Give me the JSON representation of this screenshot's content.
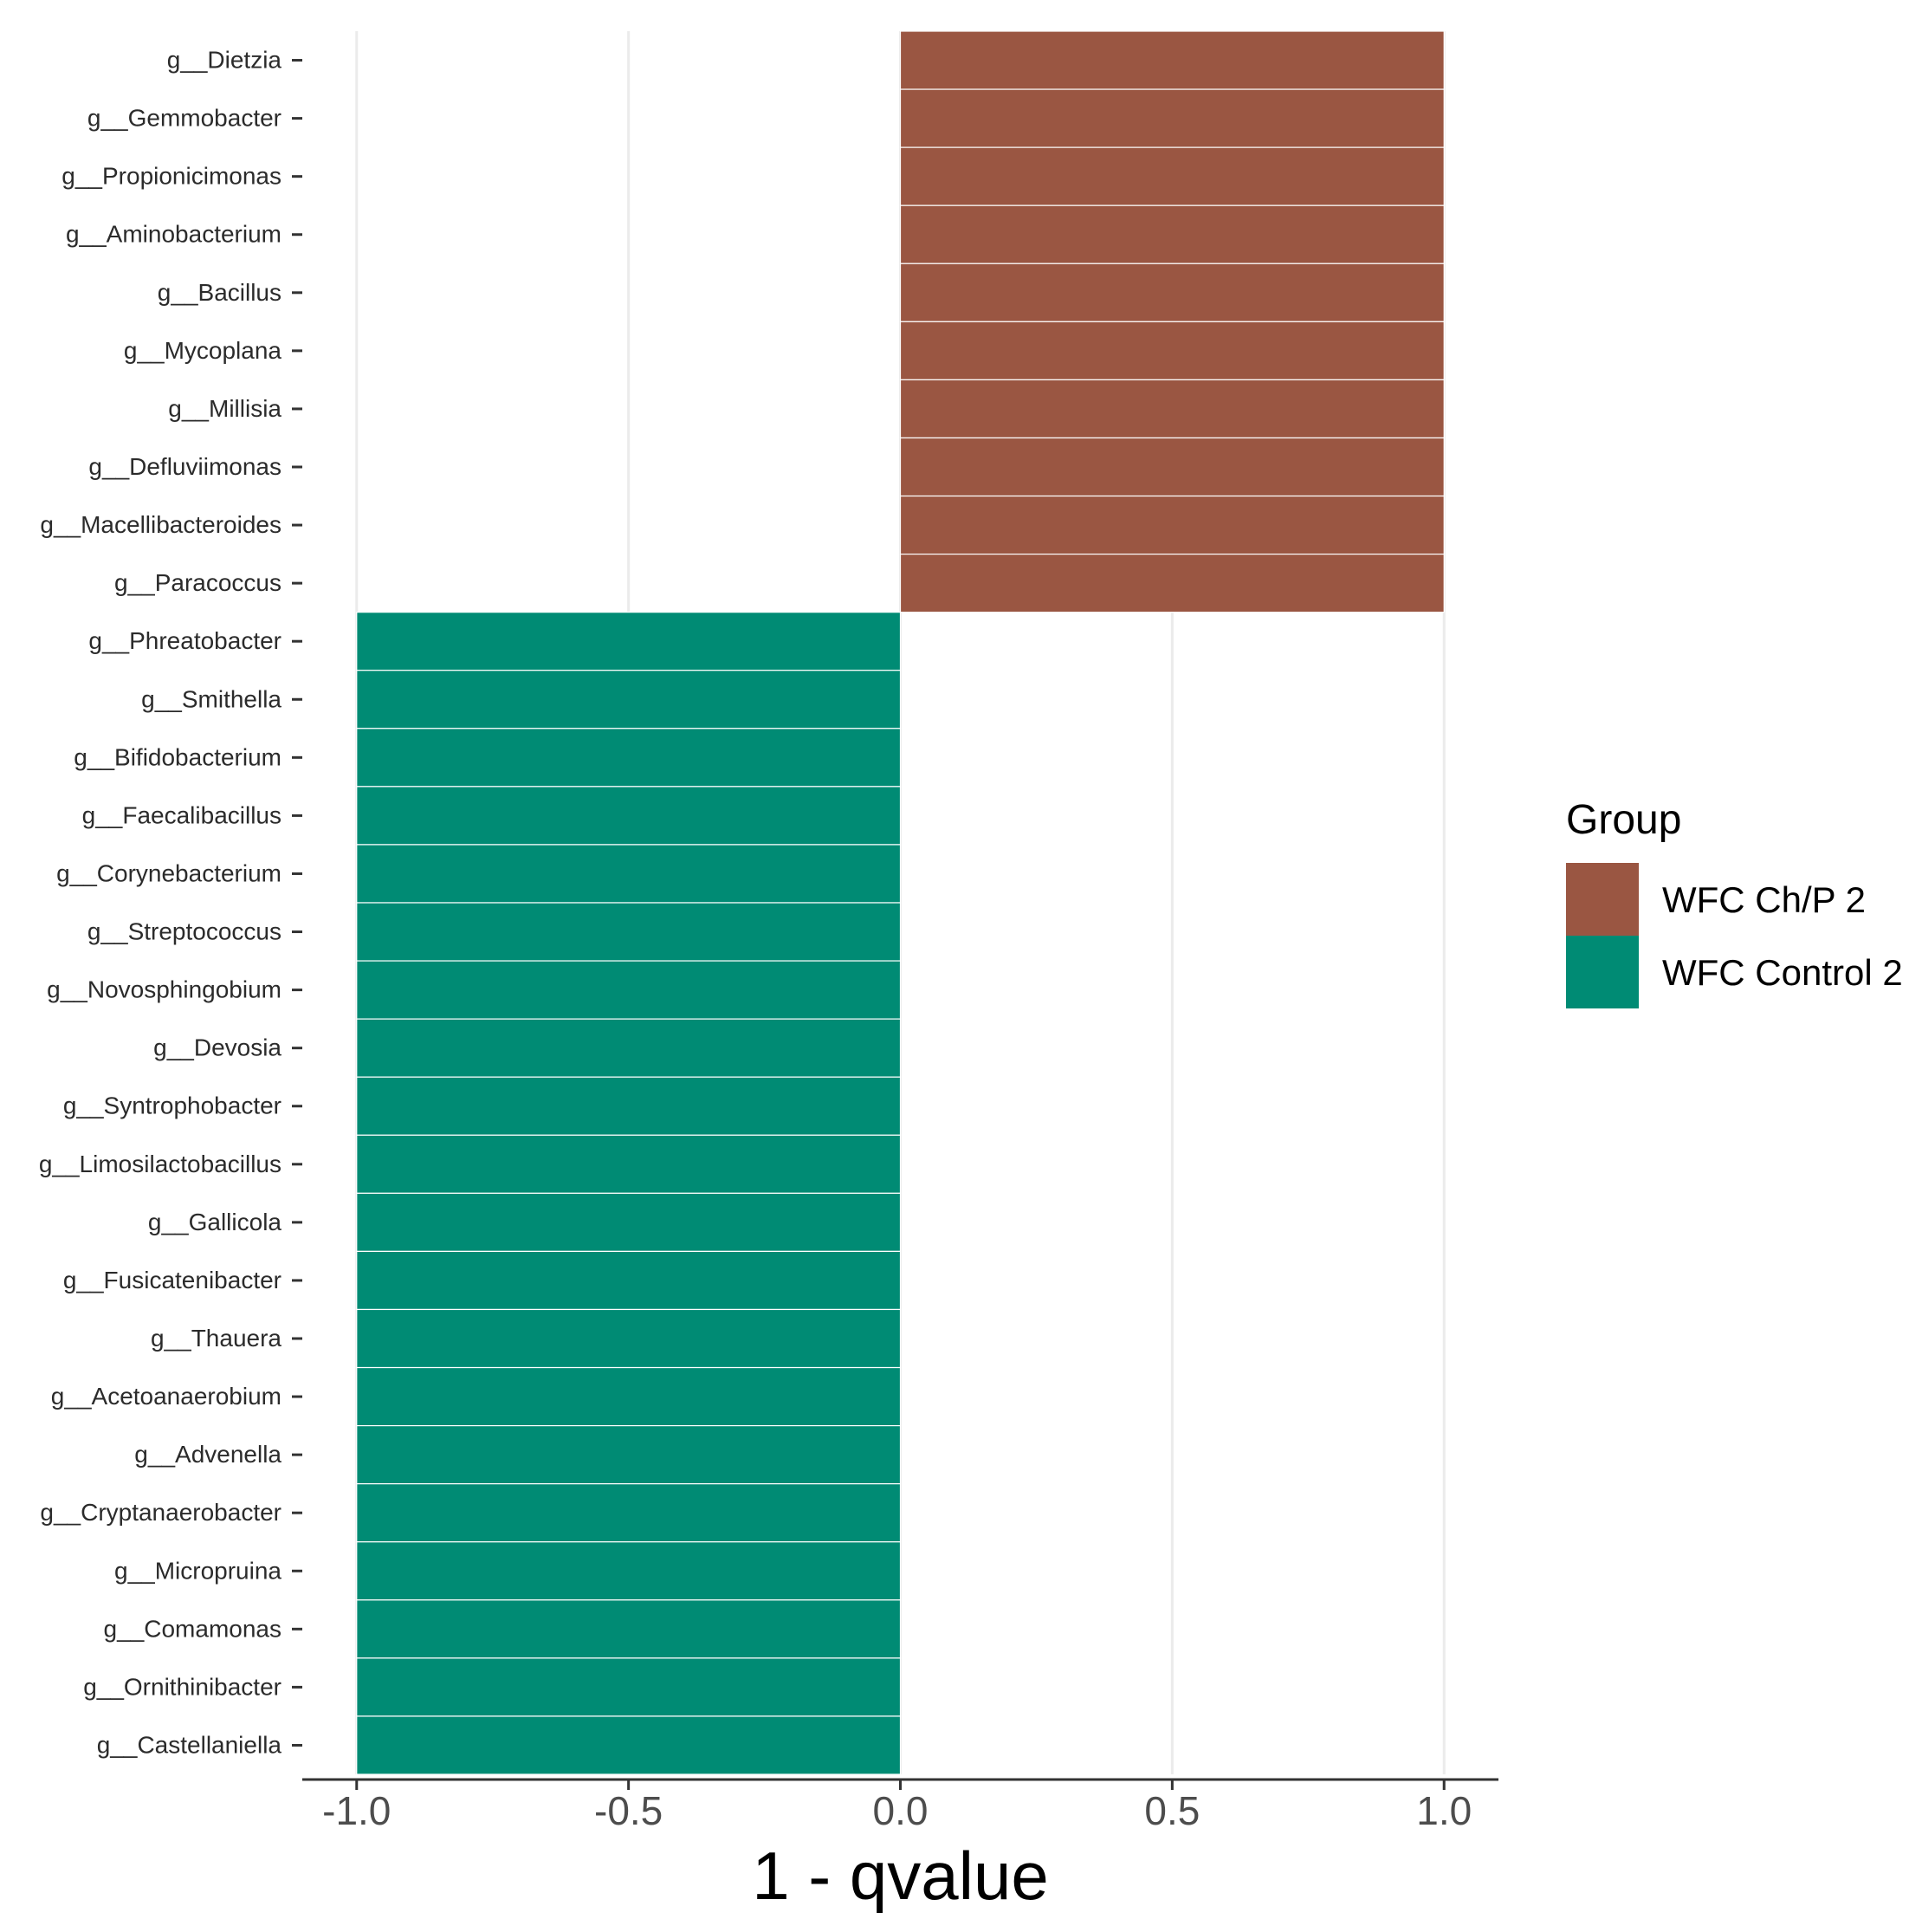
{
  "chart_data": {
    "type": "bar",
    "orientation": "horizontal",
    "categories": [
      "g__Dietzia",
      "g__Gemmobacter",
      "g__Propionicimonas",
      "g__Aminobacterium",
      "g__Bacillus",
      "g__Mycoplana",
      "g__Millisia",
      "g__Defluviimonas",
      "g__Macellibacteroides",
      "g__Paracoccus",
      "g__Phreatobacter",
      "g__Smithella",
      "g__Bifidobacterium",
      "g__Faecalibacillus",
      "g__Corynebacterium",
      "g__Streptococcus",
      "g__Novosphingobium",
      "g__Devosia",
      "g__Syntrophobacter",
      "g__Limosilactobacillus",
      "g__Gallicola",
      "g__Fusicatenibacter",
      "g__Thauera",
      "g__Acetoanaerobium",
      "g__Advenella",
      "g__Cryptanaerobacter",
      "g__Micropruina",
      "g__Comamonas",
      "g__Ornithinibacter",
      "g__Castellaniella"
    ],
    "values": [
      1,
      1,
      1,
      1,
      1,
      1,
      1,
      1,
      1,
      1,
      -1,
      -1,
      -1,
      -1,
      -1,
      -1,
      -1,
      -1,
      -1,
      -1,
      -1,
      -1,
      -1,
      -1,
      -1,
      -1,
      -1,
      -1,
      -1,
      -1
    ],
    "groups": [
      "WFC Ch/P 2",
      "WFC Ch/P 2",
      "WFC Ch/P 2",
      "WFC Ch/P 2",
      "WFC Ch/P 2",
      "WFC Ch/P 2",
      "WFC Ch/P 2",
      "WFC Ch/P 2",
      "WFC Ch/P 2",
      "WFC Ch/P 2",
      "WFC Control 2",
      "WFC Control 2",
      "WFC Control 2",
      "WFC Control 2",
      "WFC Control 2",
      "WFC Control 2",
      "WFC Control 2",
      "WFC Control 2",
      "WFC Control 2",
      "WFC Control 2",
      "WFC Control 2",
      "WFC Control 2",
      "WFC Control 2",
      "WFC Control 2",
      "WFC Control 2",
      "WFC Control 2",
      "WFC Control 2",
      "WFC Control 2",
      "WFC Control 2",
      "WFC Control 2"
    ],
    "xlabel": "1 - qvalue",
    "ylabel": "",
    "xlim": [
      -1.1,
      1.1
    ],
    "x_ticks": [
      -1.0,
      -0.5,
      0.0,
      0.5,
      1.0
    ],
    "x_tick_labels": [
      "-1.0",
      "-0.5",
      "0.0",
      "0.5",
      "1.0"
    ],
    "grid": "vertical major gridlines",
    "legend": {
      "title": "Group",
      "placement": "right",
      "entries": [
        {
          "name": "WFC Ch/P 2",
          "color": "#9a5642"
        },
        {
          "name": "WFC Control 2",
          "color": "#008b74"
        }
      ]
    }
  }
}
